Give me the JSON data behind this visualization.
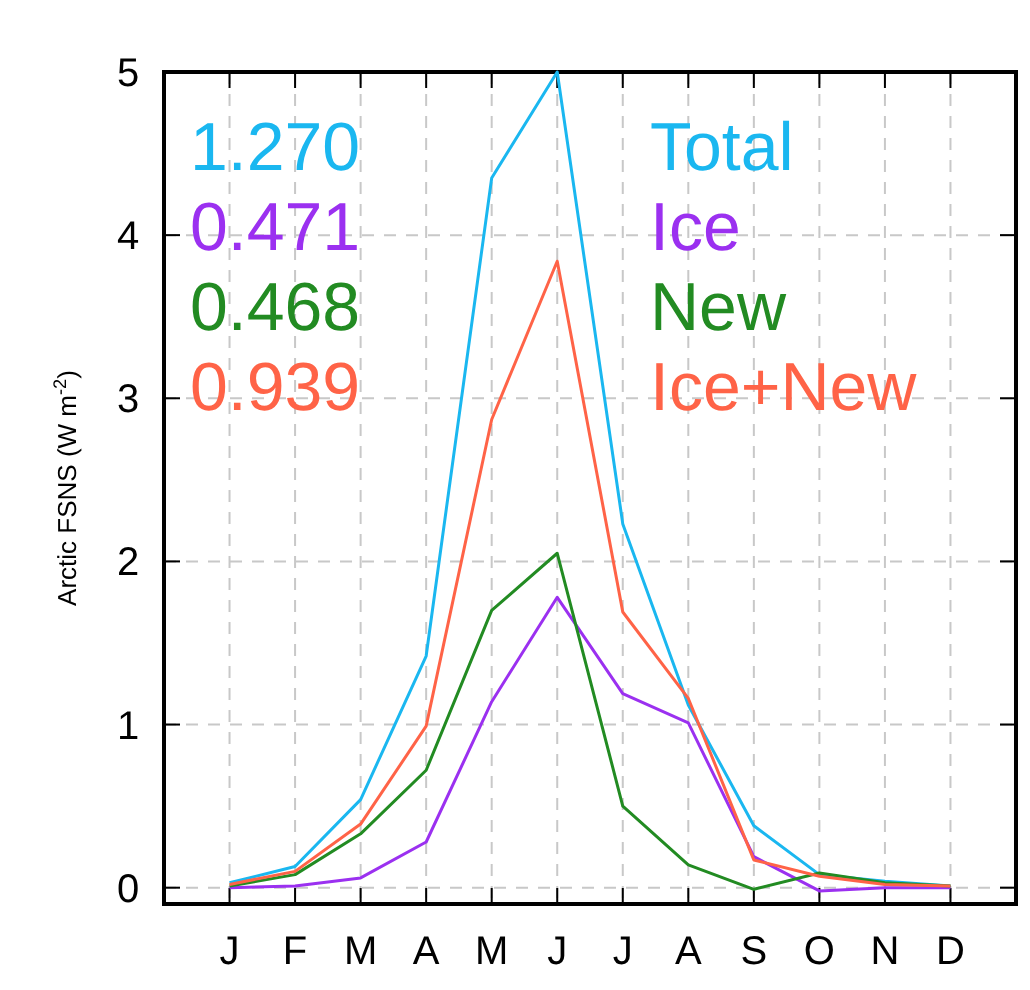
{
  "chart_data": {
    "type": "line",
    "ylabel": "Arctic FSNS (W m$^{-2}$)",
    "categories": [
      "J",
      "F",
      "M",
      "A",
      "M",
      "J",
      "J",
      "A",
      "S",
      "O",
      "N",
      "D"
    ],
    "ylim": [
      -0.1,
      5
    ],
    "yticks": [
      0,
      1,
      2,
      3,
      4,
      5
    ],
    "grid": true,
    "legend": "top right",
    "marker": "none",
    "line_style": "solid",
    "annotations": [
      "1.270",
      "0.471",
      "0.468",
      "0.939"
    ],
    "series": [
      {
        "name": "Total",
        "color": "#1ab7f0",
        "values": [
          0.03,
          0.13,
          0.54,
          1.42,
          4.35,
          5.0,
          2.23,
          1.12,
          0.38,
          0.08,
          0.04,
          0.01
        ]
      },
      {
        "name": "Ice",
        "color": "#9b30f0",
        "values": [
          0,
          0.01,
          0.06,
          0.28,
          1.14,
          1.78,
          1.19,
          1.01,
          0.19,
          -0.02,
          0,
          0
        ]
      },
      {
        "name": "New",
        "color": "#228b22",
        "values": [
          0.01,
          0.08,
          0.33,
          0.72,
          1.7,
          2.05,
          0.5,
          0.14,
          -0.01,
          0.09,
          0.03,
          0.01
        ]
      },
      {
        "name": "Ice+New",
        "color": "#ff6347",
        "values": [
          0.02,
          0.1,
          0.39,
          0.99,
          2.87,
          3.84,
          1.69,
          1.16,
          0.17,
          0.07,
          0.02,
          0.01
        ]
      }
    ]
  }
}
